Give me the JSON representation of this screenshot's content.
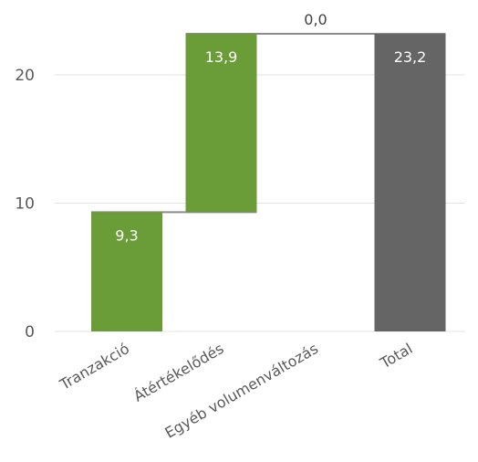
{
  "chart_data": {
    "type": "bar",
    "subtype": "waterfall",
    "categories": [
      "Tranzakció",
      "Átértékelődés",
      "Egyéb volumenváltozás",
      "Total"
    ],
    "values": [
      9.3,
      13.9,
      0.0,
      23.2
    ],
    "labels": [
      "9,3",
      "13,9",
      "0,0",
      "23,2"
    ],
    "is_total": [
      false,
      false,
      false,
      true
    ],
    "ylim": [
      0,
      23.2
    ],
    "yticks": [
      0,
      10,
      20
    ],
    "ytick_labels": [
      "0",
      "10",
      "20"
    ],
    "grid": true,
    "colors": {
      "increase": "#6a9c37",
      "total": "#656565",
      "grid": "#e3e3e3",
      "connector": "#8c8c8c"
    }
  }
}
